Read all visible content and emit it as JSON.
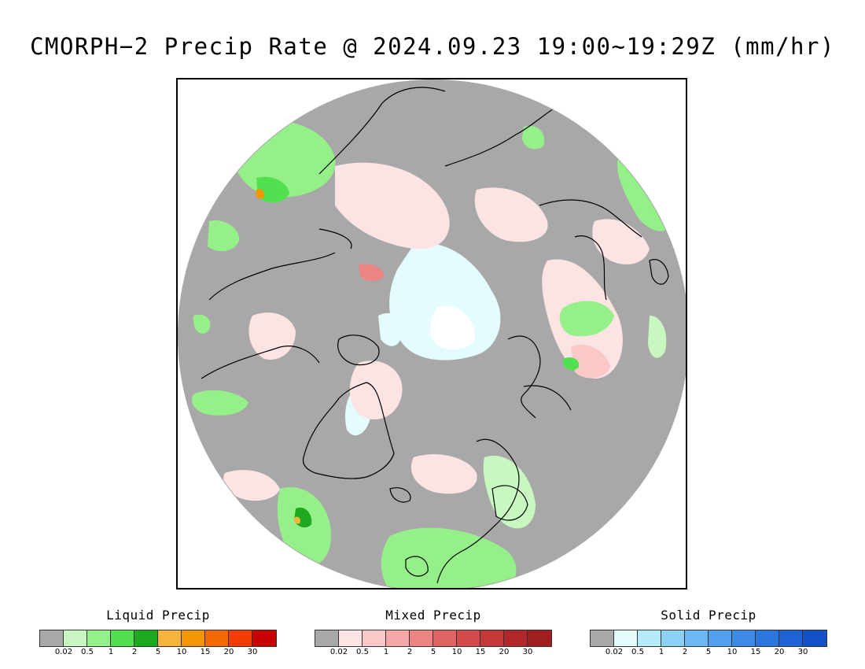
{
  "title": "CMORPH−2 Precip Rate @ 2024.09.23 19:00~19:29Z (mm/hr)",
  "colors": {
    "no_precip": "#a8a8a8",
    "coastline": "#000000"
  },
  "legends": [
    {
      "id": "liquid",
      "title": "Liquid Precip",
      "colors": [
        "#a8a8a8",
        "#c8f7c0",
        "#96f08a",
        "#50e050",
        "#1eaa1e",
        "#f5b43c",
        "#f59600",
        "#f56a00",
        "#f53c00",
        "#c80000"
      ],
      "ticks": [
        "0.02",
        "0.5",
        "1",
        "2",
        "5",
        "10",
        "15",
        "20",
        "30"
      ]
    },
    {
      "id": "mixed",
      "title": "Mixed Precip",
      "colors": [
        "#a8a8a8",
        "#fde4e4",
        "#fbc8c8",
        "#f4a8a8",
        "#ec8484",
        "#e06464",
        "#d24a4a",
        "#c43838",
        "#b22828",
        "#a01e1e"
      ],
      "ticks": [
        "0.02",
        "0.5",
        "1",
        "2",
        "5",
        "10",
        "15",
        "20",
        "30"
      ]
    },
    {
      "id": "solid",
      "title": "Solid Precip",
      "colors": [
        "#a8a8a8",
        "#e4fcfc",
        "#b4ecfa",
        "#8cd0f6",
        "#6cb8f2",
        "#50a0ec",
        "#3c8ae6",
        "#2c74de",
        "#1e62d6",
        "#1450c8"
      ],
      "ticks": [
        "0.02",
        "0.5",
        "1",
        "2",
        "5",
        "10",
        "15",
        "20",
        "30"
      ]
    }
  ]
}
